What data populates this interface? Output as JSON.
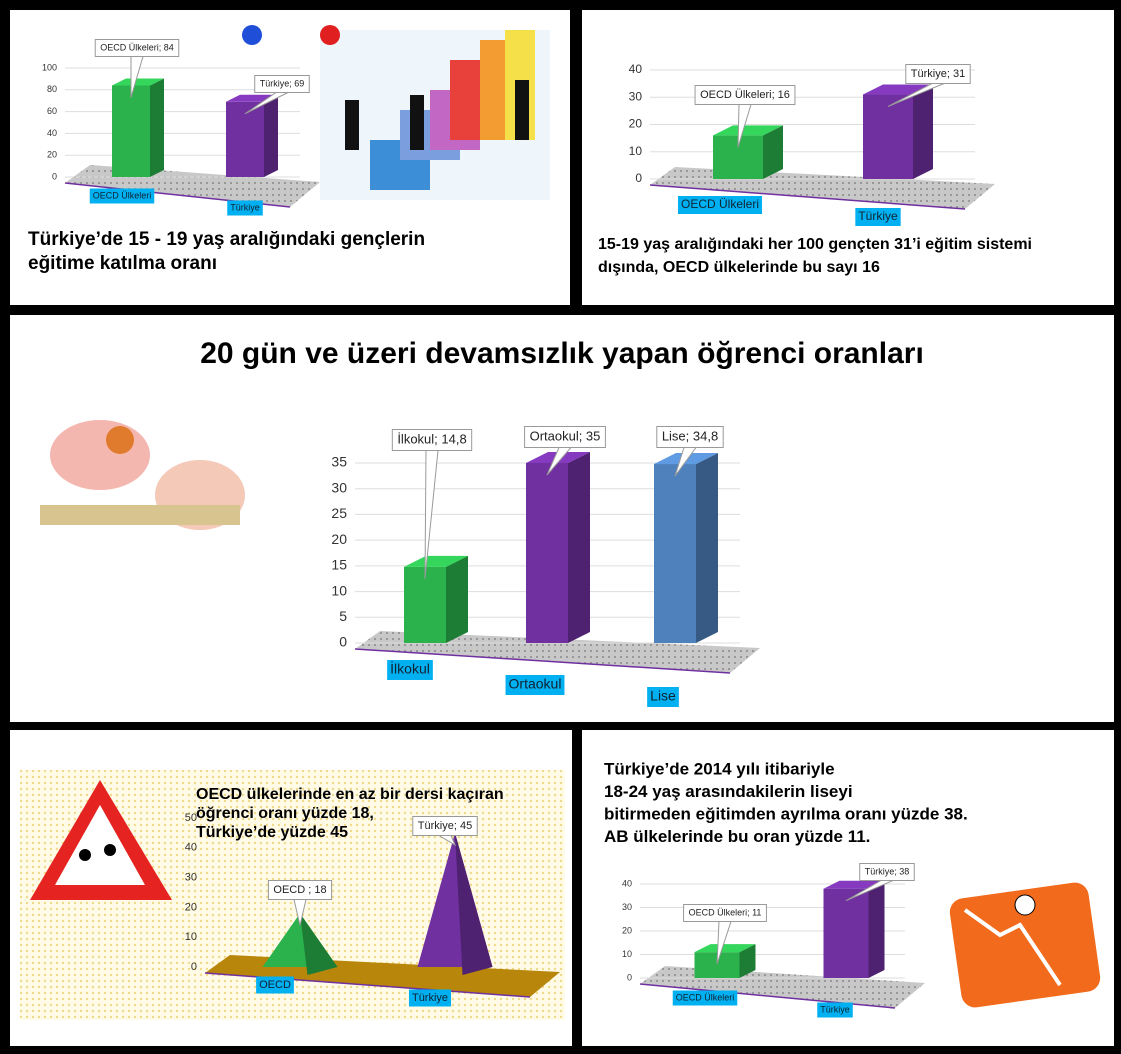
{
  "chart_data": [
    {
      "type": "bar",
      "categories": [
        "OECD Ülkeleri",
        "Türkiye"
      ],
      "values": [
        84,
        69
      ],
      "value_labels": [
        "OECD Ülkeleri; 84",
        "Türkiye; 69"
      ],
      "colors": [
        "#2bb24c",
        "#7030a0"
      ],
      "ylim": [
        0,
        100
      ],
      "yticks": [
        0,
        20,
        40,
        60,
        80,
        100
      ],
      "grid": true,
      "caption": [
        "Türkiye’de 15 - 19 yaş aralığındaki gençlerin",
        "eğitime katılma oranı"
      ]
    },
    {
      "type": "bar",
      "categories": [
        "OECD Ülkeleri",
        "Türkiye"
      ],
      "values": [
        16,
        31
      ],
      "value_labels": [
        "OECD Ülkeleri; 16",
        "Türkiye; 31"
      ],
      "colors": [
        "#2bb24c",
        "#7030a0"
      ],
      "ylim": [
        0,
        40
      ],
      "yticks": [
        0,
        10,
        20,
        30,
        40
      ],
      "grid": true,
      "caption": [
        "15-19 yaş aralığındaki  her 100 gençten 31’i eğitim sistemi",
        "dışında, OECD ülkelerinde bu sayı 16"
      ]
    },
    {
      "type": "bar",
      "title": "20 gün ve üzeri devamsızlık yapan öğrenci oranları",
      "categories": [
        "İlkokul",
        "Ortaokul",
        "Lise"
      ],
      "values": [
        14.8,
        35,
        34.8
      ],
      "value_labels": [
        "İlkokul; 14,8",
        "Ortaokul; 35",
        "Lise; 34,8"
      ],
      "colors": [
        "#2bb24c",
        "#7030a0",
        "#4f81bd"
      ],
      "ylim": [
        0,
        35
      ],
      "yticks": [
        0,
        5,
        10,
        15,
        20,
        25,
        30,
        35
      ],
      "grid": true
    },
    {
      "type": "pyramid",
      "categories": [
        "OECD",
        "Türkiye"
      ],
      "values": [
        18,
        45
      ],
      "value_labels": [
        "OECD ; 18",
        "Türkiye; 45"
      ],
      "colors": [
        "#2bb24c",
        "#7030a0"
      ],
      "ylim": [
        0,
        50
      ],
      "yticks": [
        0,
        10,
        20,
        30,
        40,
        50
      ],
      "grid": false,
      "caption": [
        "OECD ülkelerinde en az bir dersi kaçıran",
        "öğrenci oranı yüzde 18,",
        "Türkiye’de yüzde 45"
      ]
    },
    {
      "type": "bar",
      "categories": [
        "OECD Ülkeleri",
        "Türkiye"
      ],
      "values": [
        11,
        38
      ],
      "value_labels": [
        "OECD Ülkeleri; 11",
        "Türkiye; 38"
      ],
      "colors": [
        "#2bb24c",
        "#7030a0"
      ],
      "ylim": [
        0,
        40
      ],
      "yticks": [
        0,
        10,
        20,
        30,
        40
      ],
      "grid": true,
      "caption": [
        "Türkiye’de 2014 yılı itibariyle",
        "18-24 yaş arasındakilerin liseyi",
        "bitirmeden eğitimden ayrılma oranı yüzde 38.",
        "AB ülkelerinde bu oran yüzde 11."
      ]
    }
  ]
}
